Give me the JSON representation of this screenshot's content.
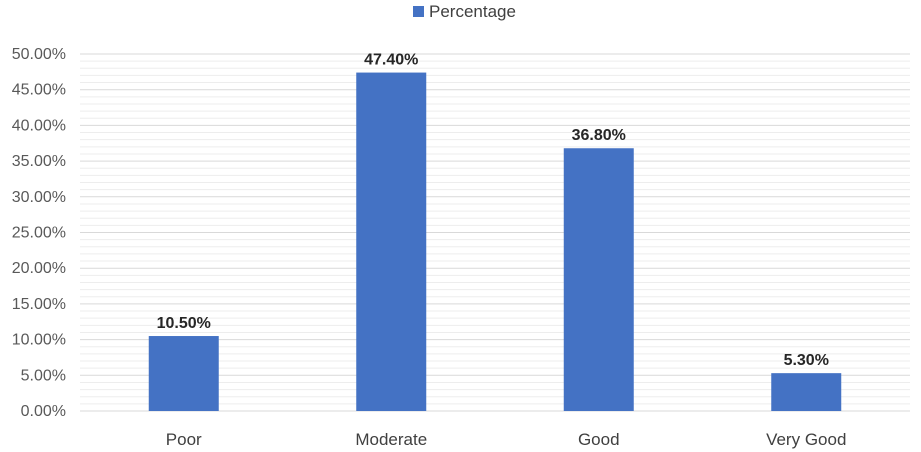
{
  "chart_data": {
    "type": "bar",
    "categories": [
      "Poor",
      "Moderate",
      "Good",
      "Very Good"
    ],
    "series": [
      {
        "name": "Percentage",
        "values": [
          10.5,
          47.4,
          36.8,
          5.3
        ],
        "labels": [
          "10.50%",
          "47.40%",
          "36.80%",
          "5.30%"
        ],
        "color": "#4472C4"
      }
    ],
    "yticks": [
      "0.00%",
      "5.00%",
      "10.00%",
      "15.00%",
      "20.00%",
      "25.00%",
      "30.00%",
      "35.00%",
      "40.00%",
      "45.00%",
      "50.00%"
    ],
    "ylim": [
      0,
      50
    ],
    "ymajor": 5,
    "yminor": 1,
    "grid": true,
    "legend_position": "top-center",
    "title": "",
    "xlabel": "",
    "ylabel": ""
  }
}
